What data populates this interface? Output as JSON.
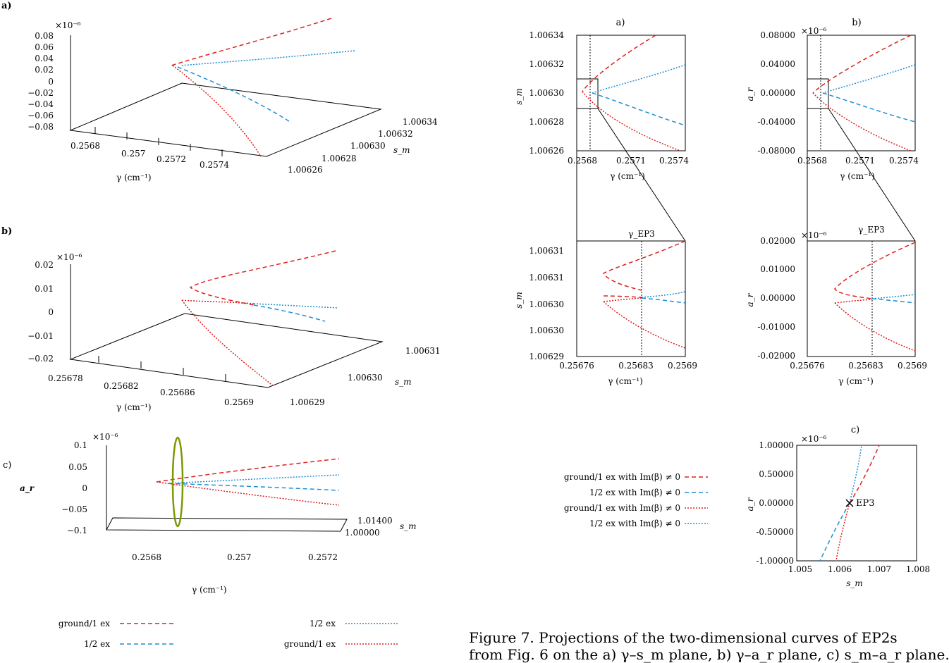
{
  "colors": {
    "red": "#e02020",
    "blue": "#1f8fd6",
    "olive": "#7a9a00",
    "axis": "#000000"
  },
  "left": {
    "a": {
      "label": "a)",
      "mult": "×10⁻⁶",
      "z_ticks": [
        "0.08",
        "0.06",
        "0.04",
        "0.02",
        "0",
        "−0.02",
        "−0.04",
        "−0.06",
        "−0.08"
      ],
      "x_ticks": [
        "0.2568",
        "0.257",
        "0.2572",
        "0.2574"
      ],
      "y_ticks": [
        "1.00634",
        "1.00632",
        "1.00630",
        "1.00628",
        "1.00626"
      ],
      "xlabel": "γ (cm⁻¹)",
      "ylabel": "s_m"
    },
    "b": {
      "label": "b)",
      "mult": "×10⁻⁶",
      "z_ticks": [
        "0.02",
        "0.01",
        "0",
        "−0.01",
        "−0.02"
      ],
      "x_ticks": [
        "0.25678",
        "0.25682",
        "0.25686",
        "0.2569"
      ],
      "y_ticks": [
        "1.00631",
        "1.00630",
        "1.00629"
      ],
      "xlabel": "γ (cm⁻¹)",
      "ylabel": "s_m"
    },
    "c": {
      "label": "c)",
      "mult": "×10⁻⁶",
      "z_ticks": [
        "0.1",
        "0.05",
        "0",
        "−0.05",
        "−0.1"
      ],
      "x_ticks": [
        "0.2568",
        "0.257",
        "0.2572"
      ],
      "y_ticks": [
        "1.01400",
        "1.00000"
      ],
      "xlabel": "γ (cm⁻¹)",
      "ylabel": "s_m",
      "zlabel": "a_r"
    },
    "legend": [
      {
        "text": "ground/1 ex",
        "color": "red",
        "style": "dashed"
      },
      {
        "text": "1/2 ex",
        "color": "blue",
        "style": "dashed"
      },
      {
        "text": "1/2 ex",
        "color": "blue",
        "style": "dotted"
      },
      {
        "text": "ground/1 ex",
        "color": "red",
        "style": "dotted"
      }
    ]
  },
  "right": {
    "top_a": {
      "title": "a)",
      "ylabel": "s_m",
      "xlabel": "γ (cm⁻¹)",
      "y_ticks": [
        "1.00634",
        "1.00632",
        "1.00630",
        "1.00628",
        "1.00626"
      ],
      "x_ticks": [
        "0.2568",
        "0.2571",
        "0.2574"
      ]
    },
    "top_b": {
      "title": "b)",
      "ylabel": "a_r",
      "xlabel": "γ (cm⁻¹)",
      "mult": "×10⁻⁶",
      "y_ticks": [
        "0.08000",
        "0.04000",
        "0.00000",
        "-0.04000",
        "-0.08000"
      ],
      "x_ticks": [
        "0.2568",
        "0.2571",
        "0.2574"
      ]
    },
    "mid_a": {
      "ylabel": "s_m",
      "xlabel": "γ (cm⁻¹)",
      "marker": "γ_EP3",
      "y_ticks": [
        "1.00631",
        "1.00631",
        "1.00630",
        "1.00630",
        "1.00629"
      ],
      "x_ticks": [
        "0.25676",
        "0.25683",
        "0.2569"
      ]
    },
    "mid_b": {
      "ylabel": "a_r",
      "xlabel": "γ (cm⁻¹)",
      "marker": "γ_EP3",
      "mult": "×10⁻⁶",
      "y_ticks": [
        "0.02000",
        "0.01000",
        "0.00000",
        "-0.01000",
        "-0.02000"
      ],
      "x_ticks": [
        "0.25676",
        "0.25683",
        "0.2569"
      ]
    },
    "bot_c": {
      "title": "c)",
      "ylabel": "a_r",
      "xlabel": "s_m",
      "mult": "×10⁻⁶",
      "point_label": "EP3",
      "y_ticks": [
        "1.00000",
        "0.50000",
        "0.00000",
        "-0.50000",
        "-1.00000"
      ],
      "x_ticks": [
        "1.005",
        "1.006",
        "1.007",
        "1.008"
      ]
    },
    "legend": [
      {
        "text": "ground/1 ex with Im(β) ≠ 0",
        "color": "red",
        "style": "dashed"
      },
      {
        "text": "1/2 ex with Im(β) ≠ 0",
        "color": "blue",
        "style": "dashed"
      },
      {
        "text": "ground/1 ex with Im(β) ≠ 0",
        "color": "red",
        "style": "dotted"
      },
      {
        "text": "1/2 ex with Im(β) ≠ 0",
        "color": "blue",
        "style": "dotted"
      }
    ]
  },
  "caption": {
    "line1": "Figure 7. Projections of the two-dimensional curves of EP2s",
    "line2": "from Fig. 6 on the a) γ–s_m plane, b) γ–a_r plane, c) s_m–a_r plane."
  }
}
